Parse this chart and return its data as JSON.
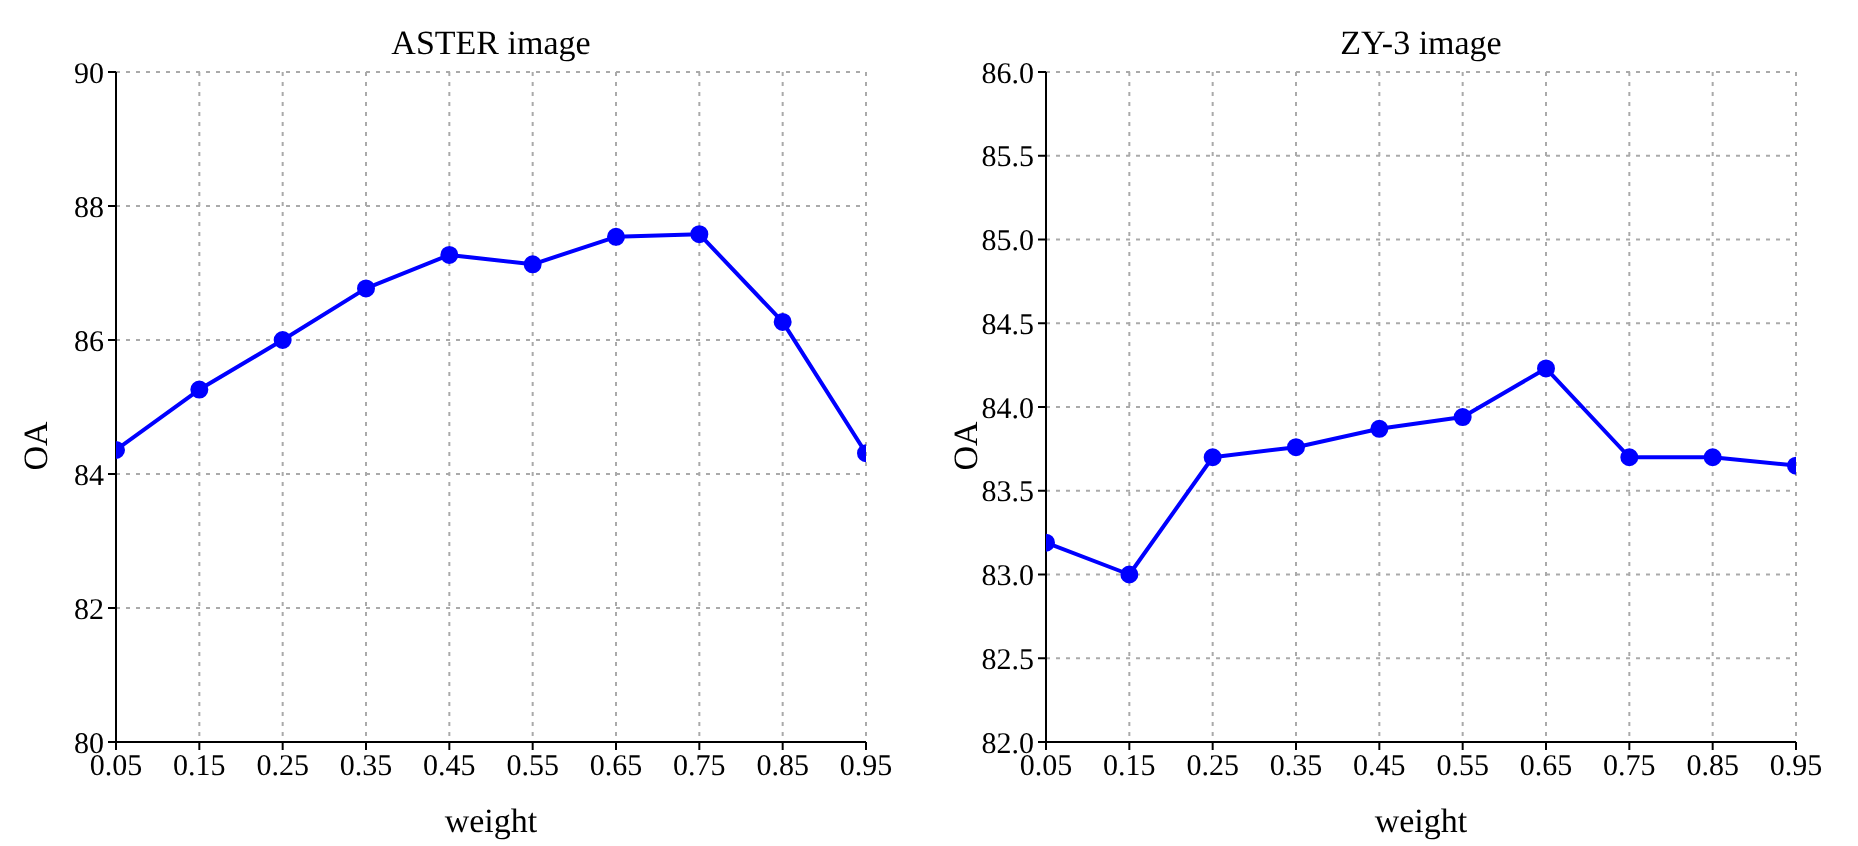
{
  "chart_data": [
    {
      "type": "line",
      "title": "ASTER image",
      "xlabel": "weight",
      "ylabel": "OA",
      "x": [
        0.05,
        0.15,
        0.25,
        0.35,
        0.45,
        0.55,
        0.65,
        0.75,
        0.85,
        0.95
      ],
      "series": [
        {
          "color": "#0000ff",
          "values": [
            84.36,
            85.26,
            86.0,
            86.77,
            87.27,
            87.13,
            87.54,
            87.58,
            86.27,
            84.31
          ]
        }
      ],
      "xlim": [
        0.05,
        0.95
      ],
      "xticks": [
        {
          "value": 0.05,
          "label": "0.05"
        },
        {
          "value": 0.15,
          "label": "0.15"
        },
        {
          "value": 0.25,
          "label": "0.25"
        },
        {
          "value": 0.35,
          "label": "0.35"
        },
        {
          "value": 0.45,
          "label": "0.45"
        },
        {
          "value": 0.55,
          "label": "0.55"
        },
        {
          "value": 0.65,
          "label": "0.65"
        },
        {
          "value": 0.75,
          "label": "0.75"
        },
        {
          "value": 0.85,
          "label": "0.85"
        },
        {
          "value": 0.95,
          "label": "0.95"
        }
      ],
      "ylim": [
        80,
        90
      ],
      "yticks": [
        80,
        82,
        84,
        86,
        88,
        90
      ],
      "grid": true,
      "marker": "circle",
      "line_style": "solid"
    },
    {
      "type": "line",
      "title": "ZY-3 image",
      "xlabel": "weight",
      "ylabel": "OA",
      "x": [
        0.05,
        0.15,
        0.25,
        0.35,
        0.45,
        0.55,
        0.65,
        0.75,
        0.85,
        0.95
      ],
      "series": [
        {
          "color": "#0000ff",
          "values": [
            83.19,
            83.0,
            83.7,
            83.76,
            83.87,
            83.94,
            84.23,
            83.7,
            83.7,
            83.65
          ]
        }
      ],
      "xlim": [
        0.05,
        0.95
      ],
      "xticks": [
        {
          "value": 0.05,
          "label": "0.05"
        },
        {
          "value": 0.15,
          "label": "0.15"
        },
        {
          "value": 0.25,
          "label": "0.25"
        },
        {
          "value": 0.35,
          "label": "0.35"
        },
        {
          "value": 0.45,
          "label": "0.45"
        },
        {
          "value": 0.55,
          "label": "0.55"
        },
        {
          "value": 0.65,
          "label": "0.65"
        },
        {
          "value": 0.75,
          "label": "0.75"
        },
        {
          "value": 0.85,
          "label": "0.85"
        },
        {
          "value": 0.95,
          "label": "0.95"
        }
      ],
      "ylim": [
        82,
        86
      ],
      "yticks": [
        {
          "value": 82,
          "label": "82.0"
        },
        {
          "value": 82.5,
          "label": "82.5"
        },
        {
          "value": 83,
          "label": "83.0"
        },
        {
          "value": 83.5,
          "label": "83.5"
        },
        {
          "value": 84,
          "label": "84.0"
        },
        {
          "value": 84.5,
          "label": "84.5"
        },
        {
          "value": 85,
          "label": "85.0"
        },
        {
          "value": 85.5,
          "label": "85.5"
        },
        {
          "value": 86,
          "label": "86.0"
        }
      ],
      "grid": true,
      "marker": "circle",
      "line_style": "solid"
    }
  ]
}
